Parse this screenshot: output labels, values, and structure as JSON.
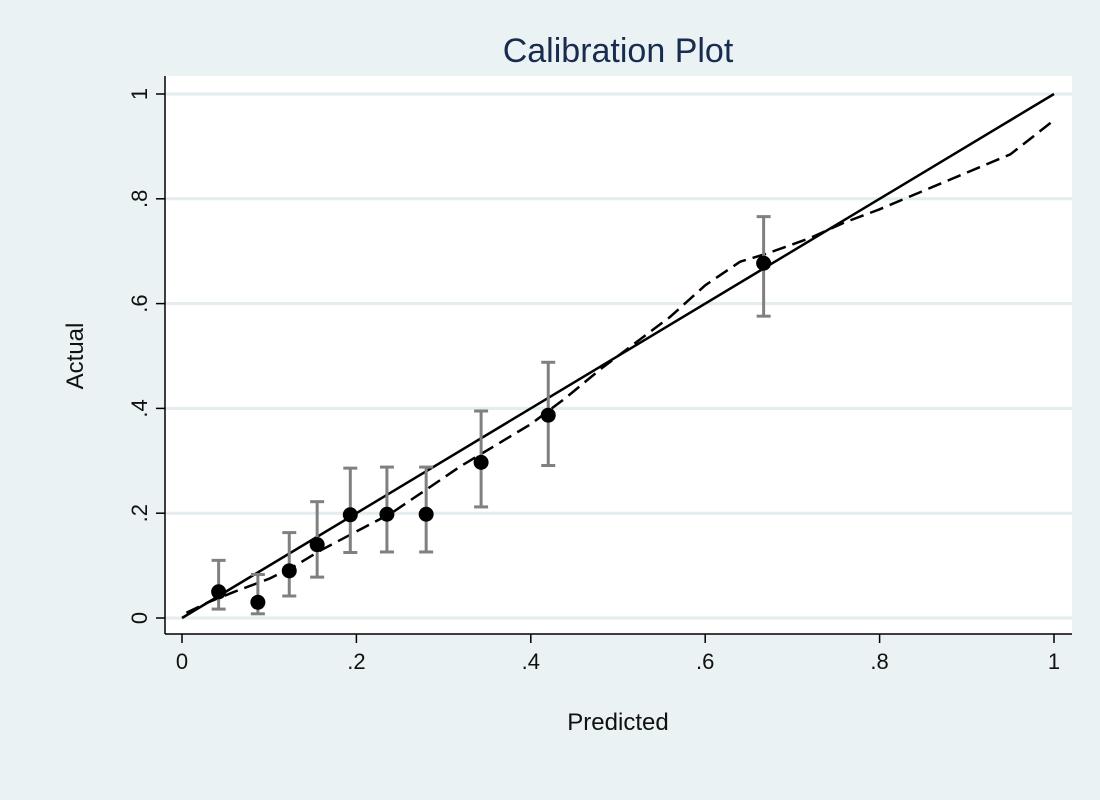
{
  "chart_data": {
    "type": "scatter",
    "title": "Calibration Plot",
    "xlabel": "Predicted",
    "ylabel": "Actual",
    "xlim": [
      0,
      1
    ],
    "ylim": [
      0,
      1
    ],
    "x_ticks": [
      {
        "value": 0,
        "label": "0"
      },
      {
        "value": 0.2,
        "label": ".2"
      },
      {
        "value": 0.4,
        "label": ".4"
      },
      {
        "value": 0.6,
        "label": ".6"
      },
      {
        "value": 0.8,
        "label": ".8"
      },
      {
        "value": 1,
        "label": "1"
      }
    ],
    "y_ticks": [
      {
        "value": 0,
        "label": "0"
      },
      {
        "value": 0.2,
        "label": ".2"
      },
      {
        "value": 0.4,
        "label": ".4"
      },
      {
        "value": 0.6,
        "label": ".6"
      },
      {
        "value": 0.8,
        "label": ".8"
      },
      {
        "value": 1,
        "label": "1"
      }
    ],
    "grid": "horizontal",
    "points": [
      {
        "x": 0.042,
        "y": 0.05,
        "lo": 0.017,
        "hi": 0.11
      },
      {
        "x": 0.087,
        "y": 0.03,
        "lo": 0.008,
        "hi": 0.083
      },
      {
        "x": 0.123,
        "y": 0.09,
        "lo": 0.042,
        "hi": 0.163
      },
      {
        "x": 0.155,
        "y": 0.14,
        "lo": 0.078,
        "hi": 0.222
      },
      {
        "x": 0.193,
        "y": 0.197,
        "lo": 0.125,
        "hi": 0.286
      },
      {
        "x": 0.235,
        "y": 0.198,
        "lo": 0.126,
        "hi": 0.288
      },
      {
        "x": 0.28,
        "y": 0.198,
        "lo": 0.126,
        "hi": 0.288
      },
      {
        "x": 0.343,
        "y": 0.297,
        "lo": 0.212,
        "hi": 0.395
      },
      {
        "x": 0.42,
        "y": 0.387,
        "lo": 0.291,
        "hi": 0.488
      },
      {
        "x": 0.667,
        "y": 0.677,
        "lo": 0.576,
        "hi": 0.766
      }
    ],
    "reference_line": {
      "x": [
        0,
        1
      ],
      "y": [
        0,
        1
      ]
    },
    "smoothed_curve": {
      "x": [
        0.005,
        0.03,
        0.06,
        0.1,
        0.13,
        0.16,
        0.2,
        0.24,
        0.28,
        0.32,
        0.36,
        0.4,
        0.44,
        0.48,
        0.52,
        0.56,
        0.6,
        0.64,
        0.67,
        0.72,
        0.76,
        0.8,
        0.85,
        0.9,
        0.95,
        1.0
      ],
      "y": [
        0.01,
        0.03,
        0.05,
        0.075,
        0.1,
        0.13,
        0.165,
        0.2,
        0.245,
        0.29,
        0.33,
        0.37,
        0.42,
        0.475,
        0.525,
        0.575,
        0.635,
        0.68,
        0.695,
        0.725,
        0.755,
        0.78,
        0.815,
        0.85,
        0.885,
        0.95
      ]
    },
    "colors": {
      "background": "#eaf2f3",
      "plot_area": "#ffffff",
      "grid": "#e3ecee",
      "markers": "#000000",
      "error_bars": "#808080",
      "lines": "#000000",
      "title": "#1a2b50"
    }
  }
}
